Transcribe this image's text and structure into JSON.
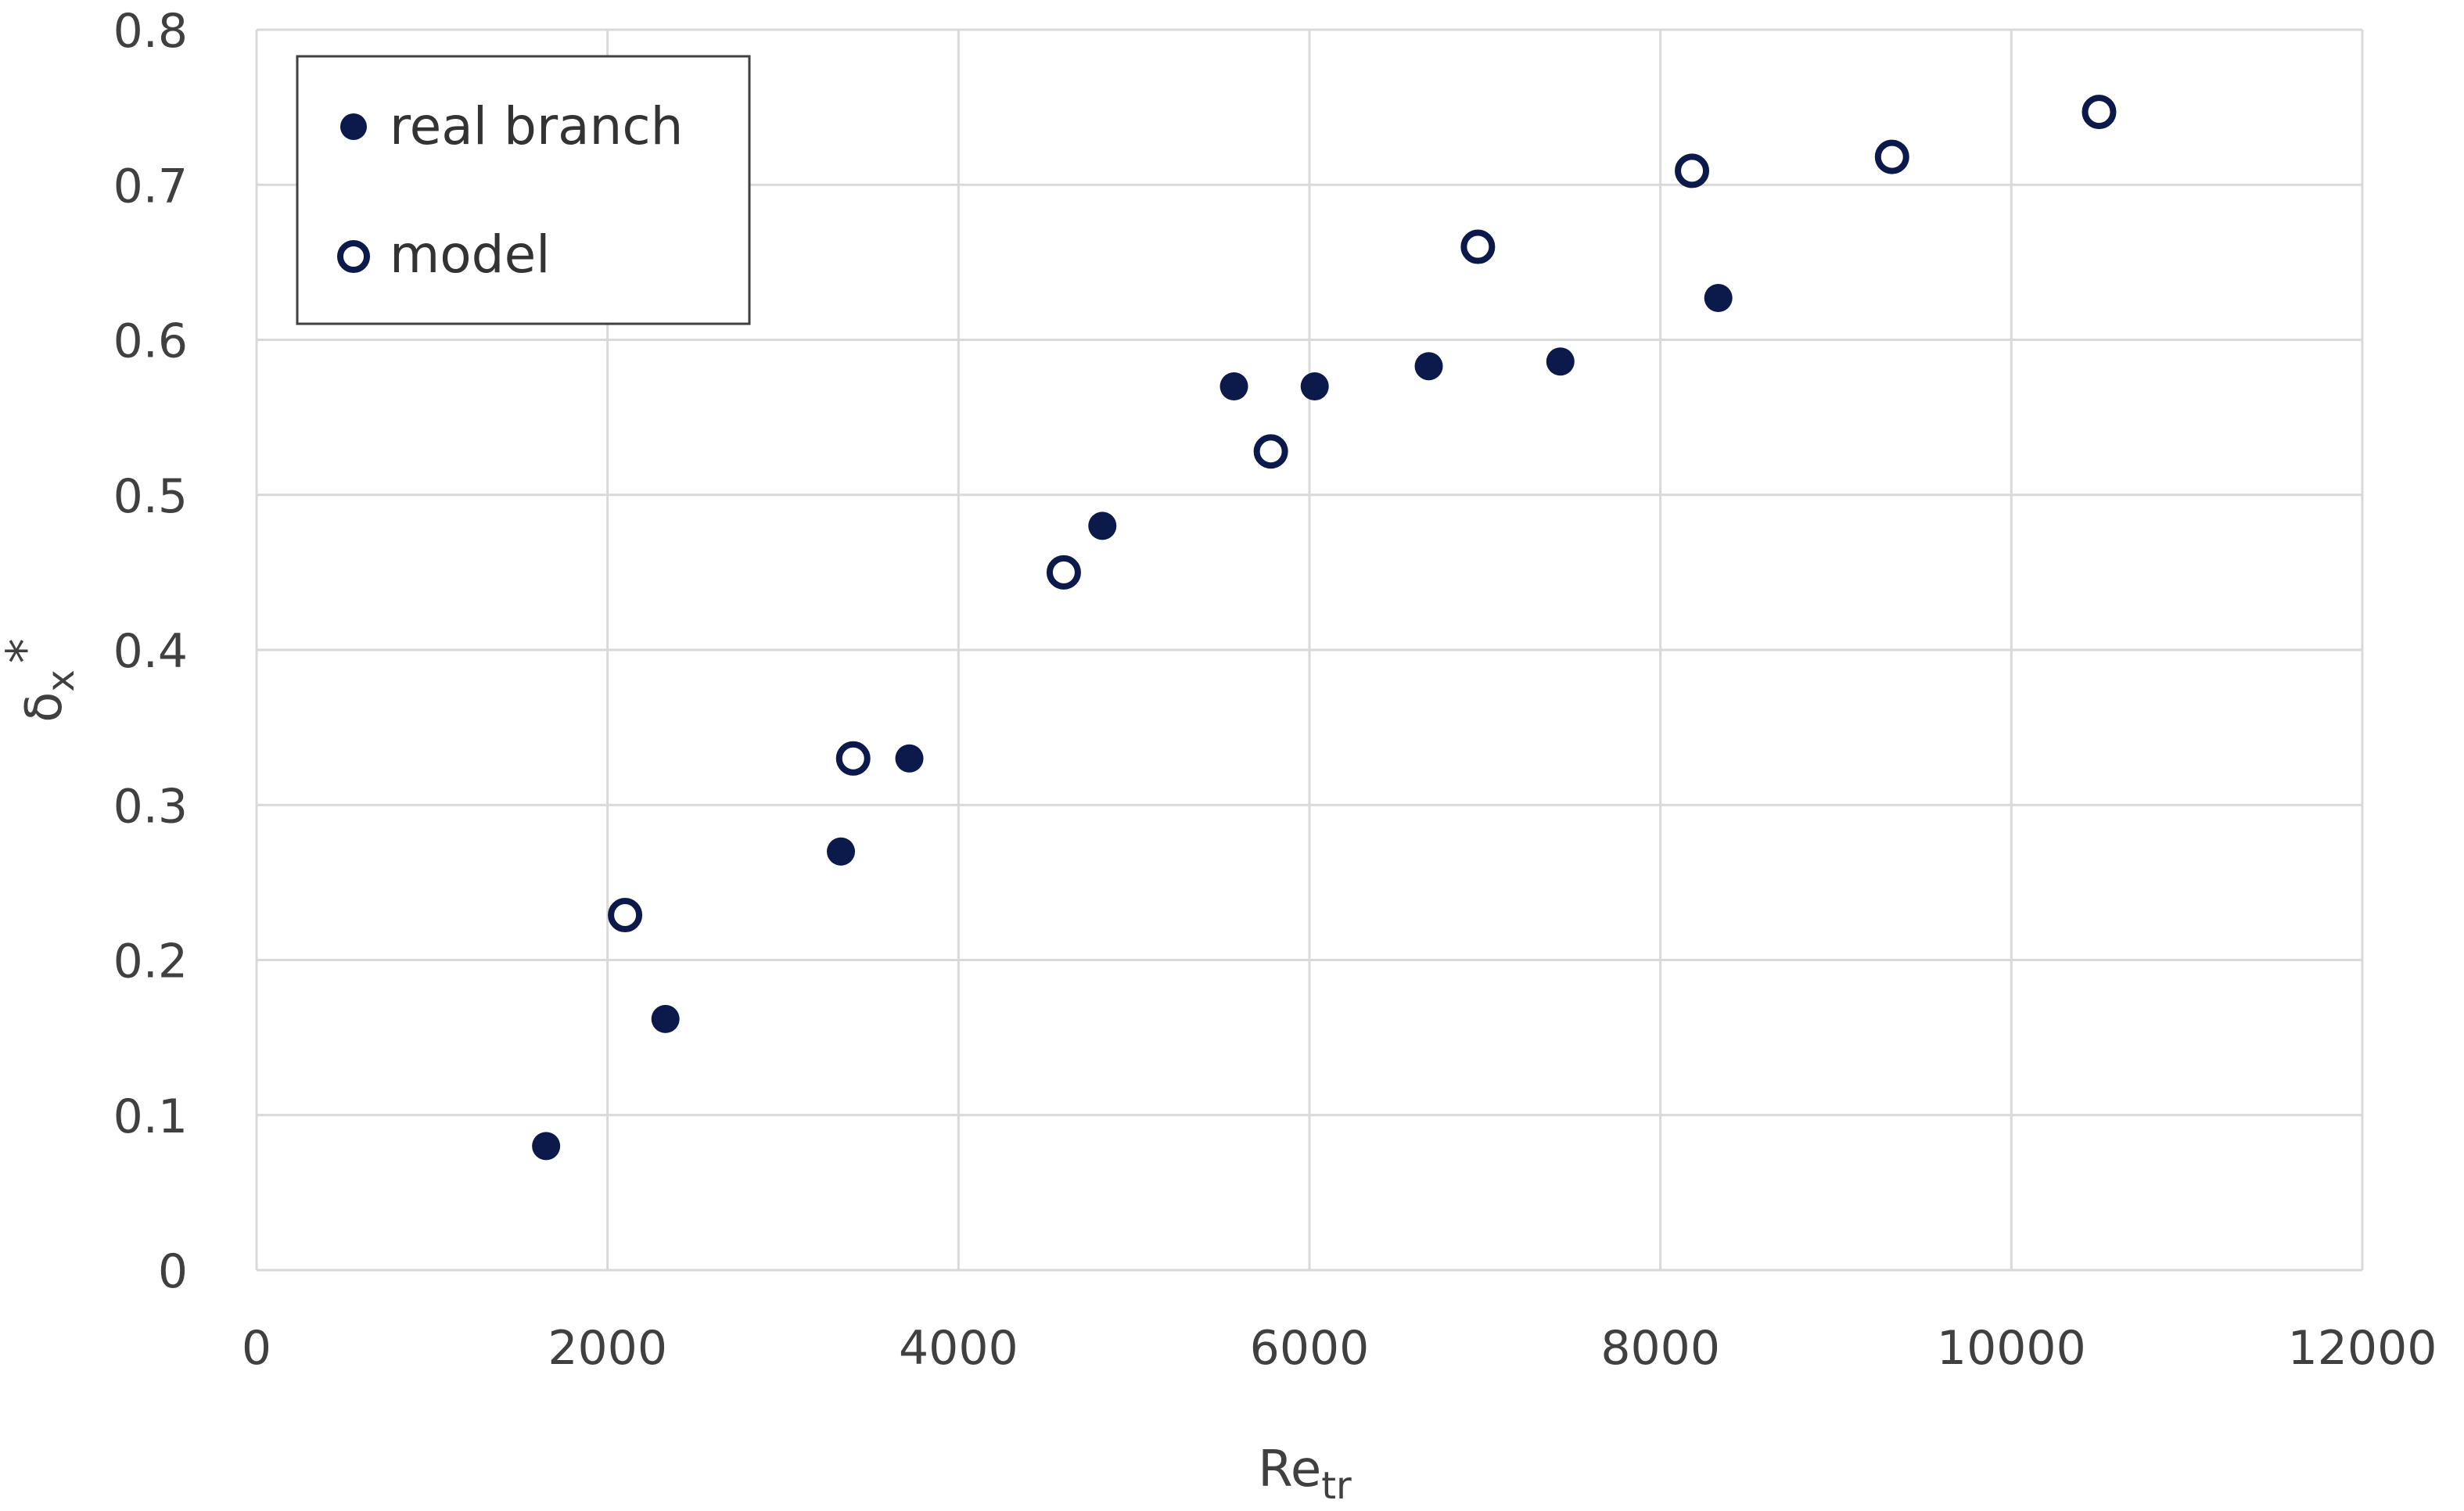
{
  "chart_data": {
    "type": "scatter",
    "title": "",
    "xlabel": "Re",
    "xlabel_sub": "tr",
    "ylabel": "δ",
    "ylabel_sub": "x",
    "ylabel_sup": "*",
    "xlim": [
      0,
      12000
    ],
    "ylim": [
      0,
      0.8
    ],
    "x_ticks": [
      "0",
      "2000",
      "4000",
      "6000",
      "8000",
      "10000",
      "12000"
    ],
    "y_ticks": [
      "0",
      "0.1",
      "0.2",
      "0.3",
      "0.4",
      "0.5",
      "0.6",
      "0.7",
      "0.8"
    ],
    "grid": true,
    "legend_position": "top-left",
    "colors": {
      "marker": "#0b1a4a",
      "grid": "#d9d9d9",
      "text": "#404040"
    },
    "series": [
      {
        "name": "real branch",
        "marker": "filled-circle",
        "points": [
          {
            "x": 1650,
            "y": 0.08
          },
          {
            "x": 2330,
            "y": 0.162
          },
          {
            "x": 3330,
            "y": 0.27
          },
          {
            "x": 3720,
            "y": 0.33
          },
          {
            "x": 4820,
            "y": 0.48
          },
          {
            "x": 5570,
            "y": 0.57
          },
          {
            "x": 6030,
            "y": 0.57
          },
          {
            "x": 6680,
            "y": 0.583
          },
          {
            "x": 7430,
            "y": 0.586
          },
          {
            "x": 8330,
            "y": 0.627
          }
        ]
      },
      {
        "name": "model",
        "marker": "open-circle",
        "points": [
          {
            "x": 2100,
            "y": 0.229
          },
          {
            "x": 3400,
            "y": 0.33
          },
          {
            "x": 4600,
            "y": 0.45
          },
          {
            "x": 5780,
            "y": 0.528
          },
          {
            "x": 6960,
            "y": 0.66
          },
          {
            "x": 8180,
            "y": 0.709
          },
          {
            "x": 9320,
            "y": 0.718
          },
          {
            "x": 10500,
            "y": 0.747
          }
        ]
      }
    ]
  }
}
